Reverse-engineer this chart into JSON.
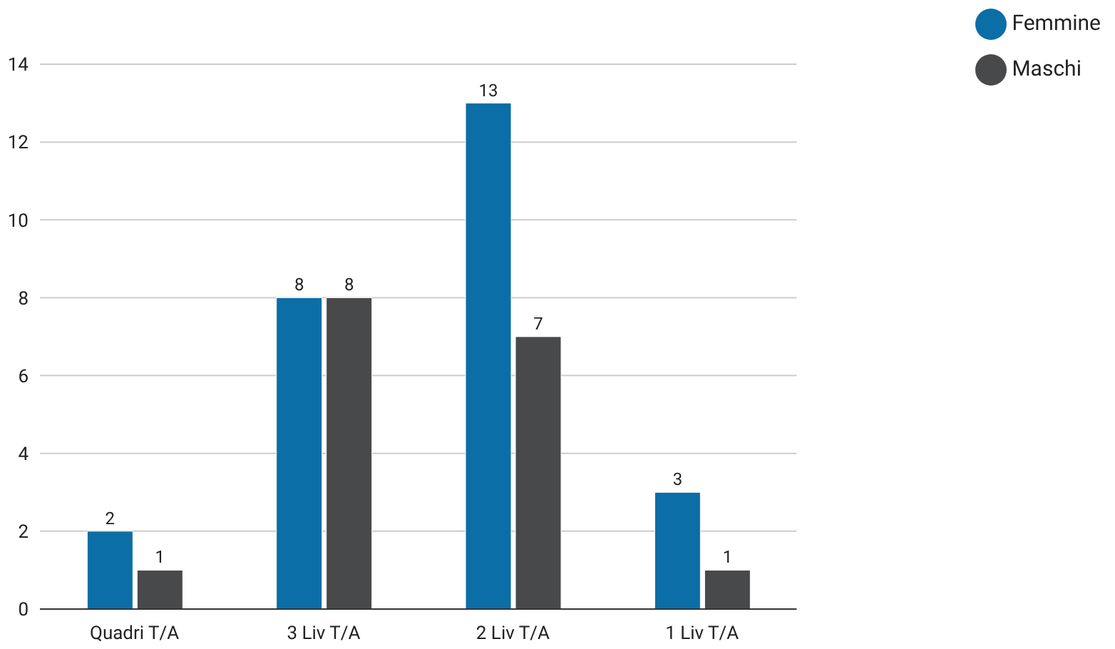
{
  "chart_data": {
    "type": "bar",
    "categories": [
      "Quadri T/A",
      "3 Liv T/A",
      "2 Liv T/A",
      "1 Liv T/A"
    ],
    "series": [
      {
        "name": "Femmine",
        "color": "#0b6ea6",
        "values": [
          2,
          8,
          13,
          3
        ]
      },
      {
        "name": "Maschi",
        "color": "#48494b",
        "values": [
          1,
          8,
          7,
          1
        ]
      }
    ],
    "ylim": [
      0,
      14
    ],
    "yticks": [
      0,
      2,
      4,
      6,
      8,
      10,
      12,
      14
    ],
    "grid": "y",
    "legend": "top right",
    "data_labels": true
  }
}
